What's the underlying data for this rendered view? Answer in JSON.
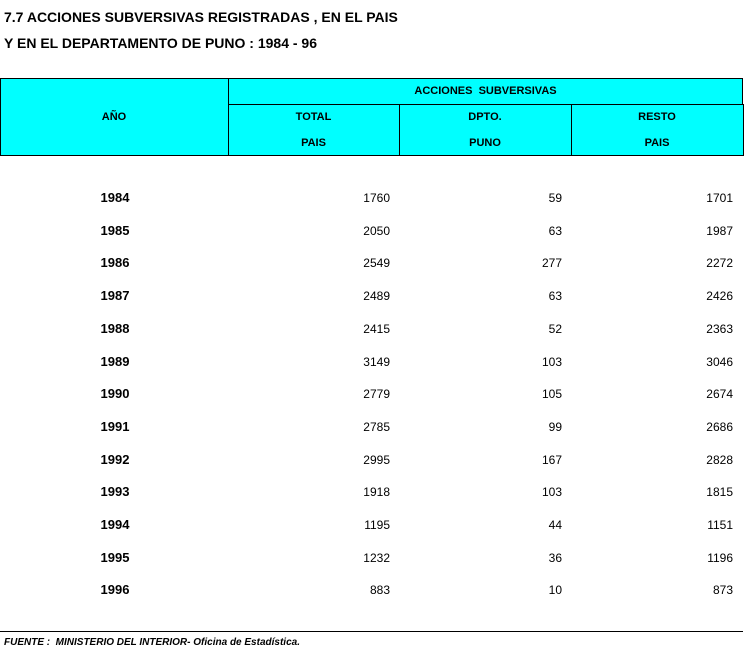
{
  "title": [
    "7.7 ACCIONES SUBVERSIVAS REGISTRADAS , EN EL PAIS",
    "Y EN EL DEPARTAMENTO DE PUNO : 1984 - 96"
  ],
  "table": {
    "group_header": "ACCIONES  SUBVERSIVAS",
    "columns": [
      [
        "AÑO"
      ],
      [
        "TOTAL",
        "PAIS"
      ],
      [
        "DPTO.",
        "PUNO"
      ],
      [
        "RESTO",
        "PAIS"
      ]
    ],
    "rows": [
      [
        1984,
        1760,
        59,
        1701
      ],
      [
        1985,
        2050,
        63,
        1987
      ],
      [
        1986,
        2549,
        277,
        2272
      ],
      [
        1987,
        2489,
        63,
        2426
      ],
      [
        1988,
        2415,
        52,
        2363
      ],
      [
        1989,
        3149,
        103,
        3046
      ],
      [
        1990,
        2779,
        105,
        2674
      ],
      [
        1991,
        2785,
        99,
        2686
      ],
      [
        1992,
        2995,
        167,
        2828
      ],
      [
        1993,
        1918,
        103,
        1815
      ],
      [
        1994,
        1195,
        44,
        1151
      ],
      [
        1995,
        1232,
        36,
        1196
      ],
      [
        1996,
        883,
        10,
        873
      ]
    ]
  },
  "footer": "FUENTE :  MINISTERIO DEL INTERIOR- Oficina de Estadística."
}
